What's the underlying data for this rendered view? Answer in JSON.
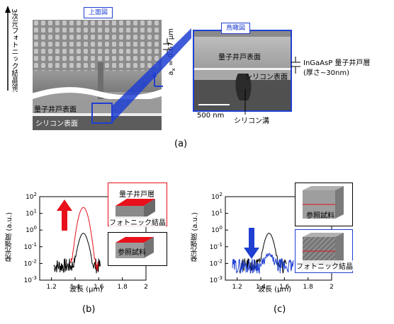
{
  "panel_a": {
    "top_view_tag": "上面図",
    "vertical_label": "3次元フォトニック結晶領域",
    "period_label": "a",
    "period_sub": "x",
    "period_value": " = 0.67 μm",
    "axis_x": "x",
    "axis_y": "y",
    "qw_surface_left": "量子井戸表面",
    "si_surface_left": "シリコン表面",
    "bird_tag": "鳥瞰図",
    "qw_surface_right": "量子井戸表面",
    "si_surface_right": "シリコン表面",
    "si_trench": "シリコン溝",
    "scalebar": "500 nm",
    "qw_layer_line1": "InGaAsP 量子井戸層",
    "qw_layer_line2": "(厚さ~30nm)",
    "caption": "(a)"
  },
  "panel_b": {
    "ylabel": "発光強度 (a.u.)",
    "xlabel": "波長 (μm)",
    "xticks": [
      "1.2",
      "1.4",
      "1.6",
      "1.8",
      "2"
    ],
    "yticks_exp": [
      "2",
      "1",
      "0",
      "-1",
      "-2",
      "-3"
    ],
    "box_qw_label": "量子井戸層",
    "box_pc_label": "フォトニック結晶",
    "box_ref_label": "参照試料",
    "caption": "(b)"
  },
  "panel_c": {
    "ylabel": "発光強度 (a.u.)",
    "xlabel": "波長 (μm)",
    "xticks": [
      "1.2",
      "1.4",
      "1.6",
      "1.8",
      "2"
    ],
    "yticks_exp": [
      "2",
      "1",
      "0",
      "-1",
      "-2",
      "-3"
    ],
    "box_ref_label": "参照試料",
    "box_pc_label": "フォトニック結晶",
    "caption": "(c)"
  },
  "colors": {
    "red": "#e8101a",
    "blue": "#1f3fd2",
    "black": "#000000"
  }
}
